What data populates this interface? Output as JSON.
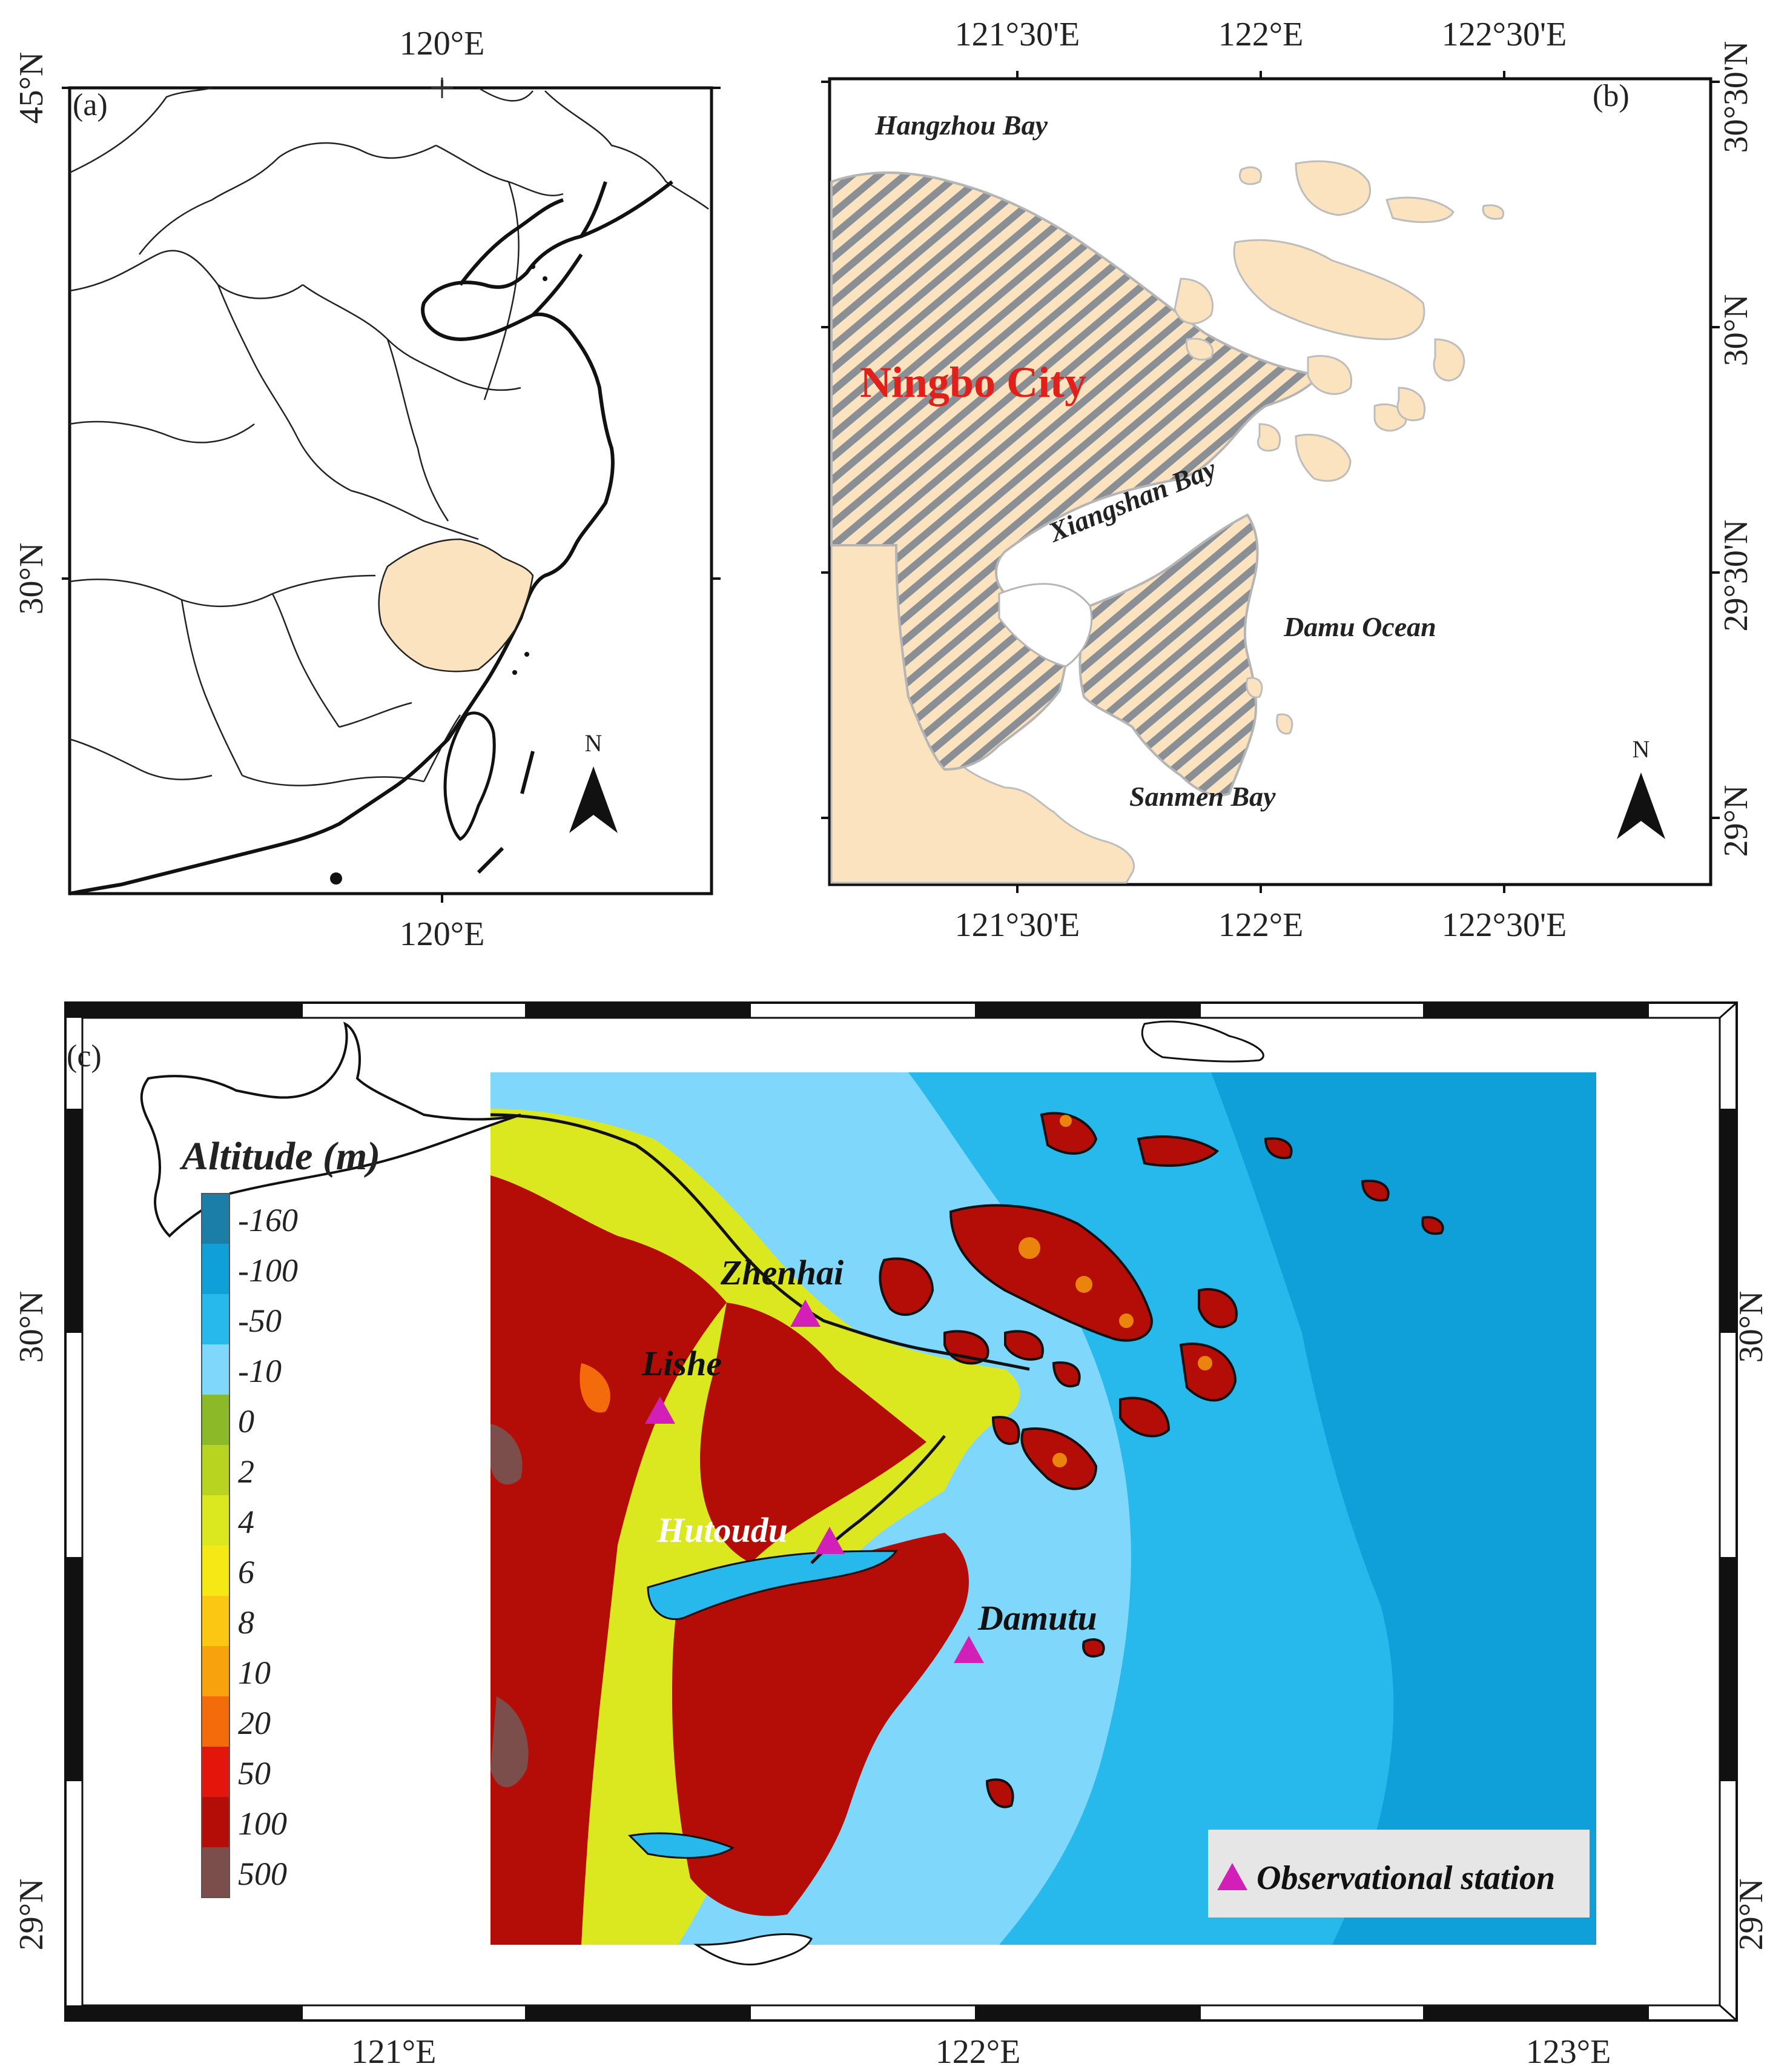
{
  "colors": {
    "province_fill": "#fbe3bf",
    "land_hatch": "#8c8c8c",
    "ocean_light": "#7ad7fb",
    "ocean_mid": "#26b7ea",
    "ocean_deep": "#0f9fd8",
    "station_marker": "#d21fb7",
    "city_label": "#e0201b"
  },
  "panel_a": {
    "label": "(a)",
    "top_ticks": [
      "120°E"
    ],
    "bottom_ticks": [
      "120°E"
    ],
    "left_ticks": [
      "45°N",
      "30°N"
    ],
    "north_label": "N"
  },
  "panel_b": {
    "label": "(b)",
    "top_ticks": [
      "121°30'E",
      "122°E",
      "122°30'E"
    ],
    "bottom_ticks": [
      "121°30'E",
      "122°E",
      "122°30'E"
    ],
    "right_ticks": [
      "30°30'N",
      "30°N",
      "29°30'N",
      "29°N"
    ],
    "north_label": "N",
    "places": {
      "hangzhou_bay": "Hangzhou Bay",
      "ningbo_city": "Ningbo City",
      "xiangshan_bay": "Xiangshan Bay",
      "damu_ocean": "Damu Ocean",
      "sanmen_bay": "Sanmen Bay"
    }
  },
  "panel_c": {
    "label": "(c)",
    "bottom_ticks": [
      "121°E",
      "122°E",
      "123°E"
    ],
    "left_ticks": [
      "30°N",
      "29°N"
    ],
    "right_ticks": [
      "30°N",
      "29°N"
    ],
    "legend_title": "Altitude (m)",
    "colorbar": [
      {
        "label": "-160",
        "color": "#1b7ea6"
      },
      {
        "label": "-100",
        "color": "#0fa0da"
      },
      {
        "label": "-50",
        "color": "#27b8ec"
      },
      {
        "label": "-10",
        "color": "#7fd8fb"
      },
      {
        "label": "0",
        "color": "#8bb928"
      },
      {
        "label": "2",
        "color": "#b9d321"
      },
      {
        "label": "4",
        "color": "#dbe81f"
      },
      {
        "label": "6",
        "color": "#f6e814"
      },
      {
        "label": "8",
        "color": "#fbc713"
      },
      {
        "label": "10",
        "color": "#f8a30e"
      },
      {
        "label": "20",
        "color": "#f46b0c"
      },
      {
        "label": "50",
        "color": "#e3160b"
      },
      {
        "label": "100",
        "color": "#b40c06"
      },
      {
        "label": "500",
        "color": "#7b4d4b"
      }
    ],
    "stations": {
      "zhenhai": "Zhenhai",
      "lishe": "Lishe",
      "hutoudu": "Hutoudu",
      "damutu": "Damutu"
    },
    "station_legend": "Observational station"
  }
}
